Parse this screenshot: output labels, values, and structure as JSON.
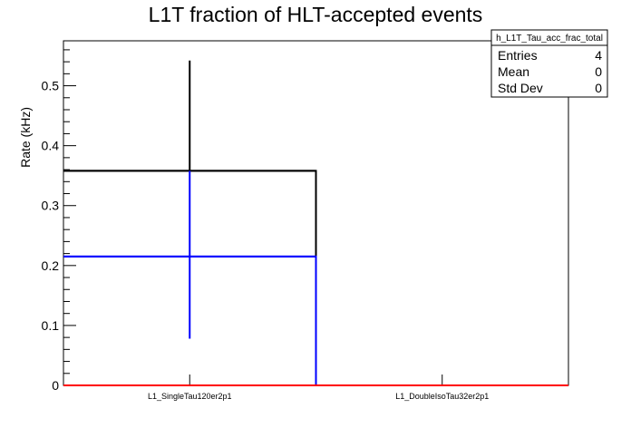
{
  "chart_data": {
    "type": "bar",
    "title": "L1T fraction of HLT-accepted events",
    "xlabel": "",
    "ylabel": "Rate (kHz)",
    "categories": [
      "L1_SingleTau120er2p1",
      "L1_DoubleIsoTau32er2p1"
    ],
    "ylim": [
      0,
      0.575
    ],
    "yticks": [
      0,
      0.1,
      0.2,
      0.3,
      0.4,
      0.5
    ],
    "ytick_labels": [
      "0",
      "0.1",
      "0.2",
      "0.3",
      "0.4",
      "0.5"
    ],
    "series": [
      {
        "color": "#000000",
        "values": [
          0.358,
          0
        ],
        "err_low": [
          0.358,
          0
        ],
        "err_high": [
          0.542,
          0
        ]
      },
      {
        "color": "#0000ff",
        "values": [
          0.215,
          0
        ],
        "err_low": [
          0.078,
          0
        ],
        "err_high": [
          0.358,
          0
        ]
      },
      {
        "color": "#ff0000",
        "values": [
          0,
          0
        ],
        "err_low": [
          0,
          0
        ],
        "err_high": [
          0,
          0
        ]
      }
    ],
    "grid": false,
    "legend": "none"
  },
  "stats_box": {
    "title": "h_L1T_Tau_acc_frac_total",
    "rows": [
      {
        "label": "Entries",
        "value": "4"
      },
      {
        "label": "Mean",
        "value": "0"
      },
      {
        "label": "Std Dev",
        "value": "0"
      }
    ]
  }
}
